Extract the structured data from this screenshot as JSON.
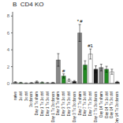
{
  "chart_data": {
    "type": "bar",
    "title": "B  CD4 KO",
    "categories": [
      "naive",
      "1x ctrl",
      "3x ctrl",
      "3x donors",
      "Day 1 Tx\nsham",
      "Day 1 Tx\n1x ctrl",
      "Day 1 Tx\n3x ctrl",
      "Day 1 Tx\n3x donors",
      "Day 3 Tx\nsham",
      "Day 3 Tx\n1x ctrl",
      "Day 3 Tx\n3x ctrl",
      "Day 3 Tx\n3x donors",
      "Day 7 Tx\nsham",
      "Day 7 Tx\n1x ctrl",
      "Day 7 Tx\n3x ctrl",
      "Day 7 Tx\n3x donors",
      "Day 14 Tx\nsham",
      "Day 14 Tx\n1x ctrl",
      "Day 14 Tx\n3x ctrl",
      "Day 14 Tx\n3x donors"
    ],
    "values": [
      0.15,
      0.1,
      0.05,
      0.08,
      0.2,
      0.12,
      0.08,
      0.1,
      2.8,
      0.9,
      0.4,
      0.25,
      6.0,
      2.2,
      3.5,
      1.7,
      1.9,
      1.7,
      1.4,
      0.18
    ],
    "errors": [
      0.07,
      0.05,
      0.03,
      0.04,
      0.1,
      0.07,
      0.04,
      0.05,
      0.75,
      0.25,
      0.15,
      0.1,
      1.0,
      0.5,
      0.6,
      0.4,
      0.4,
      0.35,
      0.3,
      0.08
    ],
    "colors": [
      "#888888",
      "#228B22",
      "#FFFFFF",
      "#1a1a1a",
      "#888888",
      "#228B22",
      "#FFFFFF",
      "#1a1a1a",
      "#888888",
      "#228B22",
      "#FFFFFF",
      "#1a1a1a",
      "#888888",
      "#228B22",
      "#FFFFFF",
      "#1a1a1a",
      "#888888",
      "#228B22",
      "#FFFFFF",
      "#1a1a1a"
    ],
    "ylim": [
      0,
      8.5
    ],
    "yticks": [
      0,
      2,
      4,
      6,
      8
    ],
    "grid": false,
    "annotations": [
      {
        "category": "Day 3 Tx\n1x ctrl",
        "text": "#"
      },
      {
        "category": "Day 7 Tx\nsham",
        "text": "*"
      },
      {
        "category": "Day 7 Tx\nsham",
        "text": "#"
      },
      {
        "category": "Day 7 Tx\n3x ctrl",
        "text": "#1"
      }
    ]
  }
}
